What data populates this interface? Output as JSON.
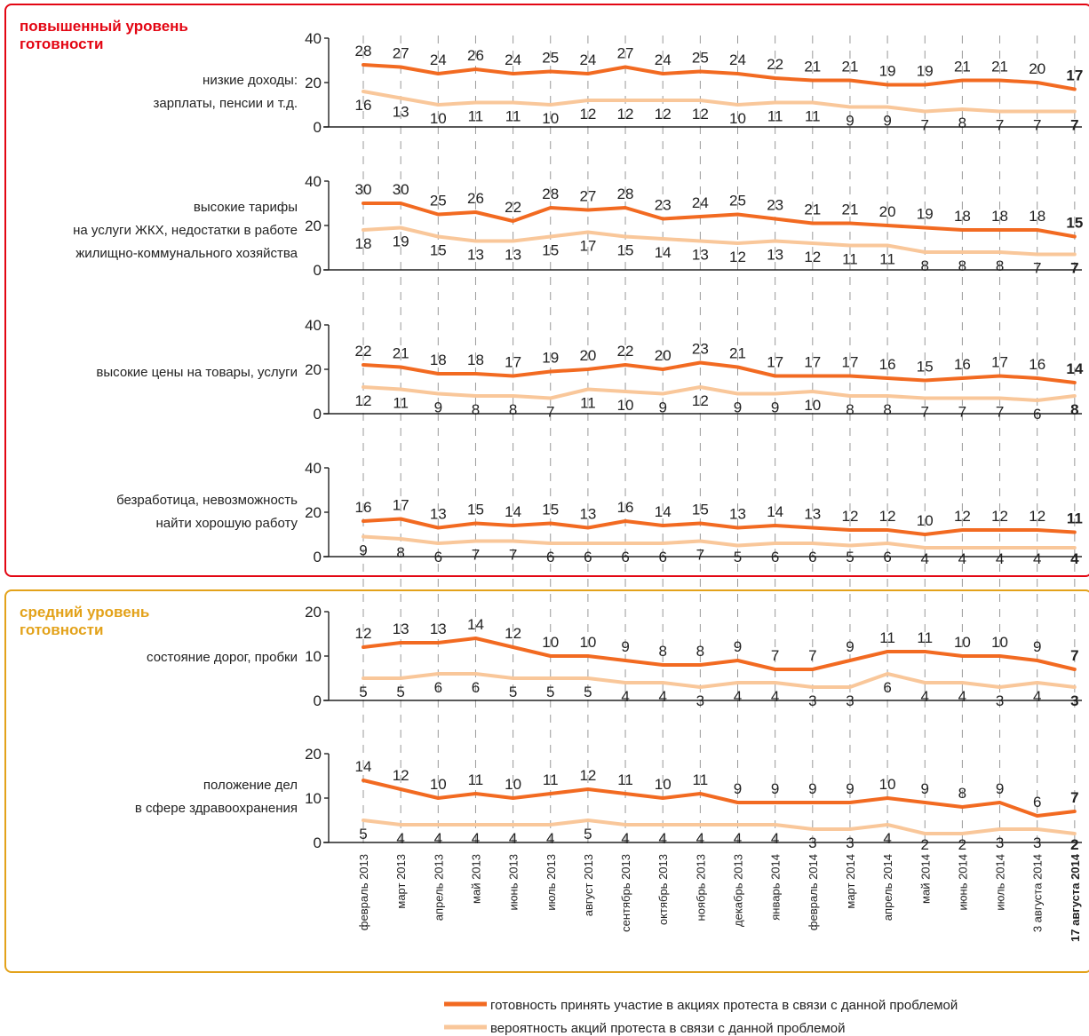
{
  "colors": {
    "high_border": "#e30613",
    "mid_border": "#e3a21a",
    "series_readiness": "#f26a21",
    "series_probability": "#f9c79a",
    "axis": "#222222",
    "grid": "#999999"
  },
  "sections": [
    {
      "title_lines": [
        "повышенный уровень",
        "готовности"
      ],
      "color": "#e30613"
    },
    {
      "title_lines": [
        "средний уровень",
        "готовности"
      ],
      "color": "#e3a21a"
    }
  ],
  "legend": [
    "готовность принять участие в акциях протеста в связи с данной проблемой",
    "вероятность акций протеста в связи с данной проблемой"
  ],
  "chart_data": {
    "type": "line",
    "grid": "vertical-dashed",
    "legend_position": "bottom-right",
    "x": [
      "февраль 2013",
      "март 2013",
      "апрель 2013",
      "май 2013",
      "июнь 2013",
      "июль 2013",
      "август 2013",
      "сентябрь 2013",
      "октябрь 2013",
      "ноябрь 2013",
      "декабрь 2013",
      "январь 2014",
      "февраль 2014",
      "март 2014",
      "апрель 2014",
      "май 2014",
      "июнь 2014",
      "июль 2014",
      "3 августа 2014",
      "17 августа 2014"
    ],
    "panels": [
      {
        "label_lines": [
          "низкие доходы:",
          "зарплаты, пенсии и т.д."
        ],
        "ylim": [
          0,
          40
        ],
        "yticks": [
          0,
          20,
          40
        ],
        "series": [
          {
            "name": "готовность принять участие в акциях протеста в связи с данной проблемой",
            "values": [
              28,
              27,
              24,
              26,
              24,
              25,
              24,
              27,
              24,
              25,
              24,
              22,
              21,
              21,
              19,
              19,
              21,
              21,
              20,
              17
            ]
          },
          {
            "name": "вероятность акций протеста в связи с данной проблемой",
            "values": [
              16,
              13,
              10,
              11,
              11,
              10,
              12,
              12,
              12,
              12,
              10,
              11,
              11,
              9,
              9,
              7,
              8,
              7,
              7,
              7
            ]
          }
        ]
      },
      {
        "label_lines": [
          "высокие тарифы",
          "на услуги ЖКХ, недостатки в работе",
          "жилищно-коммунального хозяйства"
        ],
        "ylim": [
          0,
          40
        ],
        "yticks": [
          0,
          20,
          40
        ],
        "series": [
          {
            "name": "готовность принять участие в акциях протеста в связи с данной проблемой",
            "values": [
              30,
              30,
              25,
              26,
              22,
              28,
              27,
              28,
              23,
              24,
              25,
              23,
              21,
              21,
              20,
              19,
              18,
              18,
              18,
              15
            ]
          },
          {
            "name": "вероятность акций протеста в связи с данной проблемой",
            "values": [
              18,
              19,
              15,
              13,
              13,
              15,
              17,
              15,
              14,
              13,
              12,
              13,
              12,
              11,
              11,
              8,
              8,
              8,
              7,
              7
            ]
          }
        ]
      },
      {
        "label_lines": [
          "высокие цены на товары, услуги"
        ],
        "ylim": [
          0,
          40
        ],
        "yticks": [
          0,
          20,
          40
        ],
        "series": [
          {
            "name": "готовность принять участие в акциях протеста в связи с данной проблемой",
            "values": [
              22,
              21,
              18,
              18,
              17,
              19,
              20,
              22,
              20,
              23,
              21,
              17,
              17,
              17,
              16,
              15,
              16,
              17,
              16,
              14
            ]
          },
          {
            "name": "вероятность акций протеста в связи с данной проблемой",
            "values": [
              12,
              11,
              9,
              8,
              8,
              7,
              11,
              10,
              9,
              12,
              9,
              9,
              10,
              8,
              8,
              7,
              7,
              7,
              6,
              8
            ]
          }
        ]
      },
      {
        "label_lines": [
          "безработица, невозможность",
          "найти хорошую работу"
        ],
        "ylim": [
          0,
          40
        ],
        "yticks": [
          0,
          20,
          40
        ],
        "series": [
          {
            "name": "готовность принять участие в акциях протеста в связи с данной проблемой",
            "values": [
              16,
              17,
              13,
              15,
              14,
              15,
              13,
              16,
              14,
              15,
              13,
              14,
              13,
              12,
              12,
              10,
              12,
              12,
              12,
              11
            ]
          },
          {
            "name": "вероятность акций протеста в связи с данной проблемой",
            "values": [
              9,
              8,
              6,
              7,
              7,
              6,
              6,
              6,
              6,
              7,
              5,
              6,
              6,
              5,
              6,
              4,
              4,
              4,
              4,
              4
            ]
          }
        ]
      },
      {
        "label_lines": [
          "состояние дорог, пробки"
        ],
        "ylim": [
          0,
          20
        ],
        "yticks": [
          0,
          10,
          20
        ],
        "series": [
          {
            "name": "готовность принять участие в акциях протеста в связи с данной проблемой",
            "values": [
              12,
              13,
              13,
              14,
              12,
              10,
              10,
              9,
              8,
              8,
              9,
              7,
              7,
              9,
              11,
              11,
              10,
              10,
              9,
              7
            ]
          },
          {
            "name": "вероятность акций протеста в связи с данной проблемой",
            "values": [
              5,
              5,
              6,
              6,
              5,
              5,
              5,
              4,
              4,
              3,
              4,
              4,
              3,
              3,
              6,
              4,
              4,
              3,
              4,
              3
            ]
          }
        ]
      },
      {
        "label_lines": [
          "положение дел",
          "в сфере здравоохранения"
        ],
        "ylim": [
          0,
          20
        ],
        "yticks": [
          0,
          10,
          20
        ],
        "series": [
          {
            "name": "готовность принять участие в акциях протеста в связи с данной проблемой",
            "values": [
              14,
              12,
              10,
              11,
              10,
              11,
              12,
              11,
              10,
              11,
              9,
              9,
              9,
              9,
              10,
              9,
              8,
              9,
              6,
              7
            ]
          },
          {
            "name": "вероятность акций протеста в связи с данной проблемой",
            "values": [
              5,
              4,
              4,
              4,
              4,
              4,
              5,
              4,
              4,
              4,
              4,
              4,
              3,
              3,
              4,
              2,
              2,
              3,
              3,
              2
            ]
          }
        ]
      }
    ]
  }
}
